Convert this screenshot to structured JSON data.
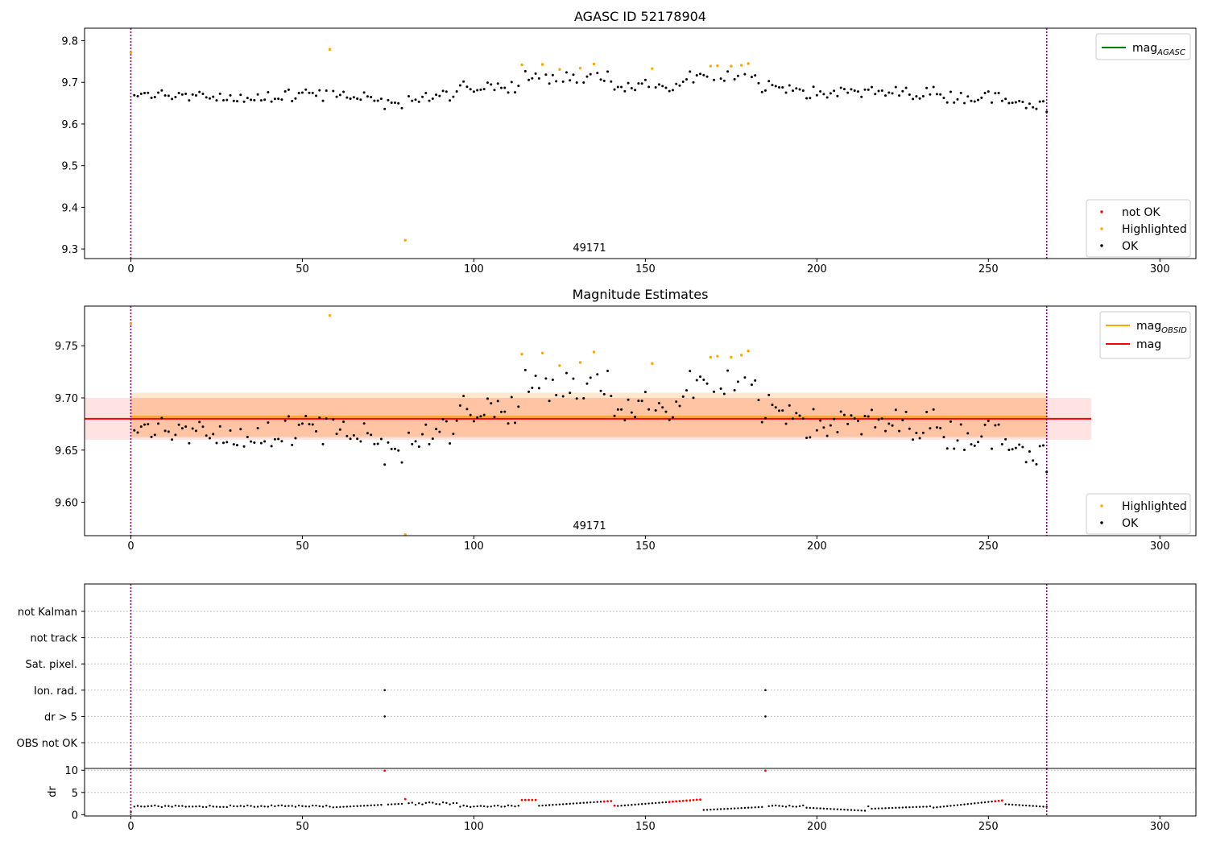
{
  "chart_data": [
    {
      "type": "scatter",
      "title": "AGASC ID 52178904",
      "xlim": [
        -13.5,
        310.5
      ],
      "ylim": [
        9.277,
        9.83
      ],
      "xticks": [
        0,
        50,
        100,
        150,
        200,
        250,
        300
      ],
      "yticks": [
        9.3,
        9.4,
        9.5,
        9.6,
        9.7,
        9.8
      ],
      "ytick_labels": [
        "9.3",
        "9.4",
        "9.5",
        "9.6",
        "9.7",
        "9.8"
      ],
      "obsid_label": "49171",
      "obsid_label_x": 133.5,
      "vlines": [
        0,
        267
      ],
      "vline_color": "#800080",
      "lines": [
        {
          "name": "mag_AGASC",
          "value": 9.77,
          "color": "#008000"
        }
      ],
      "legend_lines": [
        {
          "label": "mag",
          "sub": "AGASC",
          "color": "#008000"
        }
      ],
      "legend_points": [
        {
          "label": "not OK",
          "color": "#ff0000"
        },
        {
          "label": "Highlighted",
          "color": "#ffa500"
        },
        {
          "label": "OK",
          "color": "#000000"
        }
      ],
      "highlighted": {
        "color": "#ffa500",
        "x": [
          0,
          58,
          80,
          114,
          120,
          125,
          131,
          135,
          152,
          169,
          171,
          175,
          178,
          180
        ],
        "y": [
          9.771,
          9.779,
          9.321,
          9.742,
          9.743,
          9.731,
          9.734,
          9.744,
          9.733,
          9.739,
          9.74,
          9.739,
          9.741,
          9.745
        ]
      }
    },
    {
      "type": "scatter",
      "title": "Magnitude Estimates",
      "xlim": [
        -13.5,
        310.5
      ],
      "ylim": [
        9.568,
        9.788
      ],
      "xticks": [
        0,
        50,
        100,
        150,
        200,
        250,
        300
      ],
      "yticks": [
        9.6,
        9.65,
        9.7,
        9.75
      ],
      "ytick_labels": [
        "9.60",
        "9.65",
        "9.70",
        "9.75"
      ],
      "obsid_label": "49171",
      "obsid_label_x": 133.5,
      "vlines": [
        0,
        267
      ],
      "bands": [
        {
          "x": [
            -13.5,
            280
          ],
          "y": [
            9.66,
            9.7
          ],
          "color": "#ff9999",
          "opacity": 0.28
        },
        {
          "x": [
            0,
            267
          ],
          "y": [
            9.662,
            9.705
          ],
          "color": "#ffb266",
          "opacity": 0.3
        },
        {
          "x": [
            0,
            267
          ],
          "y": [
            9.663,
            9.7
          ],
          "color": "#ff9a66",
          "opacity": 0.28
        }
      ],
      "lines": [
        {
          "name": "mag_OBSID",
          "value": 9.682,
          "x": [
            0,
            267
          ],
          "color": "#ffa500"
        },
        {
          "name": "mag",
          "value": 9.68,
          "x": [
            -13.5,
            280
          ],
          "color": "#ff0000"
        }
      ],
      "legend_lines": [
        {
          "label": "mag",
          "sub": "OBSID",
          "color": "#ffa500"
        },
        {
          "label": "mag",
          "sub": "",
          "color": "#ff0000"
        }
      ],
      "legend_points": [
        {
          "label": "Highlighted",
          "color": "#ffa500"
        },
        {
          "label": "OK",
          "color": "#000000"
        }
      ],
      "highlighted": {
        "color": "#ffa500",
        "x": [
          0,
          58,
          80,
          114,
          120,
          125,
          131,
          135,
          152,
          169,
          171,
          175,
          178,
          180
        ],
        "y": [
          9.771,
          9.779,
          9.569,
          9.742,
          9.743,
          9.731,
          9.734,
          9.744,
          9.733,
          9.739,
          9.74,
          9.739,
          9.741,
          9.745
        ]
      }
    },
    {
      "type": "scatter",
      "title": "",
      "ylabel": "",
      "xlim": [
        -13.5,
        310.5
      ],
      "flag_rows": [
        "not Kalman",
        "not track",
        "Sat. pixel.",
        "Ion. rad.",
        "dr > 5",
        "OBS not OK"
      ],
      "flag_points": [
        {
          "row": "Ion. rad.",
          "x": 74
        },
        {
          "row": "Ion. rad.",
          "x": 185
        },
        {
          "row": "dr > 5",
          "x": 74
        },
        {
          "row": "dr > 5",
          "x": 185
        }
      ],
      "vlines": [
        0,
        267
      ]
    },
    {
      "type": "scatter",
      "ylabel": "dr",
      "xlim": [
        -13.5,
        310.5
      ],
      "ylim": [
        -0.3,
        10.4
      ],
      "xticks": [
        0,
        50,
        100,
        150,
        200,
        250,
        300
      ],
      "yticks": [
        0,
        5,
        10
      ],
      "ytick_labels": [
        "0",
        "5",
        "10"
      ],
      "vlines": [
        0,
        267
      ],
      "red_segments": [
        [
          74,
          74
        ],
        [
          80,
          80
        ],
        [
          114,
          118
        ],
        [
          138,
          141
        ],
        [
          157,
          166
        ],
        [
          185,
          185
        ],
        [
          252,
          254
        ]
      ],
      "series_description": "dr per observation index 0-267, mostly 1-3.5 with outliers ~10 at 74 and 185"
    }
  ]
}
